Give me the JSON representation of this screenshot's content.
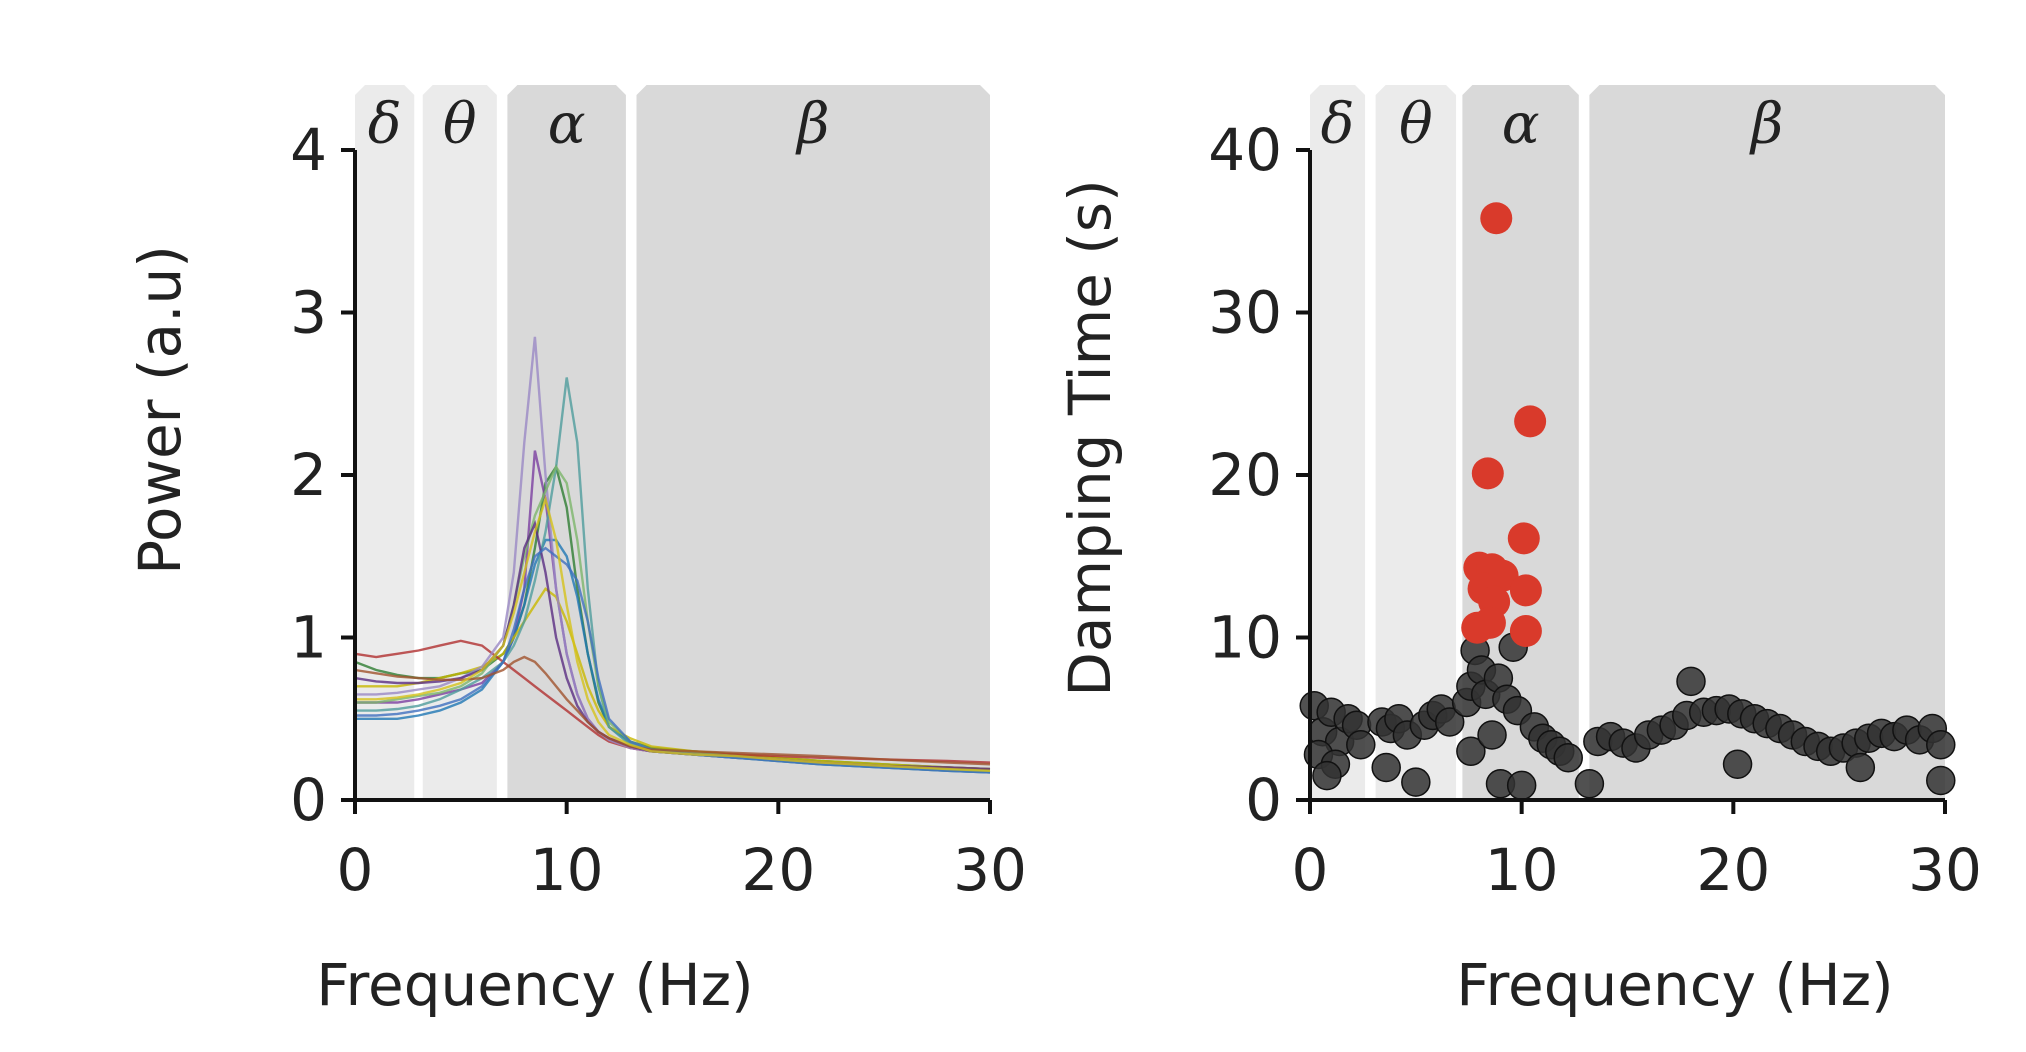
{
  "chart_data": [
    {
      "type": "line",
      "xlabel": "Frequency (Hz)",
      "ylabel": "Power (a.u)",
      "xlim": [
        0,
        30
      ],
      "ylim": [
        0,
        4
      ],
      "xticks": [
        0,
        10,
        20,
        30
      ],
      "yticks": [
        0,
        1,
        2,
        3,
        4
      ],
      "bands": [
        {
          "label": "δ",
          "range": [
            0,
            2.8
          ]
        },
        {
          "label": "θ",
          "range": [
            3.2,
            6.7
          ]
        },
        {
          "label": "α",
          "range": [
            7.2,
            12.8
          ]
        },
        {
          "label": "β",
          "range": [
            13.3,
            30
          ]
        }
      ],
      "series_style": "overlapping spectra of many channels",
      "series_colors": [
        "#2e7d32",
        "#7b3fa0",
        "#1f77b4",
        "#c8b800",
        "#b03030",
        "#9a88c4",
        "#4f9c9c",
        "#7cb56a",
        "#5a2d82",
        "#3f6fbf",
        "#a0522d",
        "#d4c21a"
      ],
      "x": [
        0,
        1,
        2,
        3,
        4,
        5,
        6,
        7,
        7.5,
        8,
        8.5,
        9,
        9.5,
        10,
        10.5,
        11,
        11.5,
        12,
        13,
        14,
        16,
        18,
        20,
        22,
        25,
        28,
        30
      ],
      "series": [
        {
          "values": [
            0.85,
            0.8,
            0.77,
            0.75,
            0.75,
            0.78,
            0.8,
            0.9,
            1.0,
            1.2,
            1.55,
            1.95,
            2.05,
            1.8,
            1.3,
            0.9,
            0.6,
            0.45,
            0.36,
            0.32,
            0.3,
            0.28,
            0.26,
            0.24,
            0.22,
            0.2,
            0.19
          ]
        },
        {
          "values": [
            0.6,
            0.6,
            0.6,
            0.62,
            0.65,
            0.68,
            0.72,
            0.85,
            1.0,
            1.3,
            2.15,
            1.85,
            1.3,
            0.9,
            0.65,
            0.5,
            0.42,
            0.38,
            0.32,
            0.3,
            0.28,
            0.26,
            0.25,
            0.23,
            0.21,
            0.2,
            0.19
          ]
        },
        {
          "values": [
            0.5,
            0.5,
            0.5,
            0.52,
            0.55,
            0.6,
            0.68,
            0.85,
            1.0,
            1.2,
            1.45,
            1.6,
            1.6,
            1.5,
            1.25,
            0.9,
            0.62,
            0.45,
            0.35,
            0.3,
            0.28,
            0.26,
            0.24,
            0.22,
            0.2,
            0.18,
            0.17
          ]
        },
        {
          "values": [
            0.7,
            0.7,
            0.7,
            0.72,
            0.75,
            0.78,
            0.82,
            0.9,
            1.0,
            1.1,
            1.2,
            1.3,
            1.25,
            1.1,
            0.9,
            0.7,
            0.55,
            0.45,
            0.38,
            0.33,
            0.3,
            0.28,
            0.26,
            0.24,
            0.22,
            0.2,
            0.19
          ]
        },
        {
          "values": [
            0.9,
            0.88,
            0.9,
            0.92,
            0.95,
            0.98,
            0.95,
            0.85,
            0.8,
            0.75,
            0.7,
            0.65,
            0.6,
            0.55,
            0.5,
            0.45,
            0.4,
            0.36,
            0.32,
            0.3,
            0.29,
            0.28,
            0.27,
            0.26,
            0.25,
            0.24,
            0.23
          ]
        },
        {
          "values": [
            0.65,
            0.65,
            0.66,
            0.68,
            0.7,
            0.75,
            0.82,
            1.0,
            1.4,
            2.2,
            2.85,
            2.0,
            1.3,
            0.9,
            0.65,
            0.5,
            0.42,
            0.37,
            0.32,
            0.3,
            0.28,
            0.26,
            0.25,
            0.23,
            0.21,
            0.19,
            0.18
          ]
        },
        {
          "values": [
            0.55,
            0.55,
            0.56,
            0.58,
            0.62,
            0.68,
            0.75,
            0.85,
            0.95,
            1.1,
            1.35,
            1.65,
            2.05,
            2.6,
            2.2,
            1.3,
            0.7,
            0.45,
            0.34,
            0.3,
            0.28,
            0.26,
            0.24,
            0.22,
            0.2,
            0.18,
            0.17
          ]
        },
        {
          "values": [
            0.6,
            0.6,
            0.62,
            0.64,
            0.66,
            0.7,
            0.78,
            0.95,
            1.2,
            1.5,
            1.75,
            1.9,
            2.05,
            1.95,
            1.6,
            1.1,
            0.7,
            0.48,
            0.36,
            0.31,
            0.29,
            0.27,
            0.25,
            0.23,
            0.21,
            0.19,
            0.18
          ]
        },
        {
          "values": [
            0.75,
            0.73,
            0.72,
            0.72,
            0.73,
            0.75,
            0.8,
            0.95,
            1.2,
            1.55,
            1.7,
            1.4,
            1.0,
            0.75,
            0.58,
            0.48,
            0.42,
            0.38,
            0.33,
            0.3,
            0.28,
            0.27,
            0.25,
            0.23,
            0.21,
            0.2,
            0.19
          ]
        },
        {
          "values": [
            0.52,
            0.52,
            0.53,
            0.55,
            0.58,
            0.62,
            0.7,
            0.85,
            1.05,
            1.3,
            1.5,
            1.55,
            1.5,
            1.45,
            1.35,
            1.1,
            0.75,
            0.5,
            0.36,
            0.31,
            0.28,
            0.26,
            0.24,
            0.22,
            0.2,
            0.18,
            0.17
          ]
        },
        {
          "values": [
            0.8,
            0.78,
            0.76,
            0.75,
            0.74,
            0.74,
            0.75,
            0.8,
            0.85,
            0.88,
            0.85,
            0.78,
            0.7,
            0.62,
            0.55,
            0.48,
            0.42,
            0.38,
            0.33,
            0.31,
            0.3,
            0.29,
            0.28,
            0.27,
            0.25,
            0.23,
            0.22
          ]
        },
        {
          "values": [
            0.62,
            0.62,
            0.63,
            0.65,
            0.68,
            0.72,
            0.8,
            0.95,
            1.15,
            1.4,
            1.65,
            1.85,
            1.6,
            1.2,
            0.85,
            0.62,
            0.48,
            0.4,
            0.34,
            0.3,
            0.28,
            0.27,
            0.25,
            0.23,
            0.21,
            0.19,
            0.18
          ]
        }
      ]
    },
    {
      "type": "scatter",
      "xlabel": "Frequency (Hz)",
      "ylabel": "Damping Time (s)",
      "xlim": [
        0,
        30
      ],
      "ylim": [
        0,
        40
      ],
      "xticks": [
        0,
        10,
        20,
        30
      ],
      "yticks": [
        0,
        10,
        20,
        30,
        40
      ],
      "bands": [
        {
          "label": "δ",
          "range": [
            0,
            2.6
          ]
        },
        {
          "label": "θ",
          "range": [
            3.1,
            6.9
          ]
        },
        {
          "label": "α",
          "range": [
            7.2,
            12.7
          ]
        },
        {
          "label": "β",
          "range": [
            13.2,
            30
          ]
        }
      ],
      "highlight_color": "#d93a2b",
      "base_color": "#333333",
      "highlighted_points": [
        {
          "x": 8.8,
          "y": 35.8
        },
        {
          "x": 10.4,
          "y": 23.3
        },
        {
          "x": 8.4,
          "y": 20.1
        },
        {
          "x": 10.1,
          "y": 16.1
        },
        {
          "x": 8.0,
          "y": 14.3
        },
        {
          "x": 8.6,
          "y": 14.2
        },
        {
          "x": 9.1,
          "y": 13.8
        },
        {
          "x": 8.2,
          "y": 13.0
        },
        {
          "x": 10.2,
          "y": 12.9
        },
        {
          "x": 8.7,
          "y": 12.2
        },
        {
          "x": 7.9,
          "y": 10.6
        },
        {
          "x": 8.5,
          "y": 10.9
        },
        {
          "x": 10.2,
          "y": 10.4
        }
      ],
      "base_points": [
        {
          "x": 0.2,
          "y": 5.8
        },
        {
          "x": 0.6,
          "y": 4.2
        },
        {
          "x": 1.0,
          "y": 5.4
        },
        {
          "x": 1.4,
          "y": 3.6
        },
        {
          "x": 1.8,
          "y": 5.0
        },
        {
          "x": 2.2,
          "y": 4.6
        },
        {
          "x": 0.4,
          "y": 2.8
        },
        {
          "x": 1.2,
          "y": 2.2
        },
        {
          "x": 0.8,
          "y": 1.5
        },
        {
          "x": 2.4,
          "y": 3.4
        },
        {
          "x": 3.4,
          "y": 4.8
        },
        {
          "x": 3.8,
          "y": 4.4
        },
        {
          "x": 4.2,
          "y": 5.0
        },
        {
          "x": 4.6,
          "y": 4.0
        },
        {
          "x": 5.0,
          "y": 1.1
        },
        {
          "x": 3.6,
          "y": 2.0
        },
        {
          "x": 5.4,
          "y": 4.6
        },
        {
          "x": 5.8,
          "y": 5.2
        },
        {
          "x": 6.2,
          "y": 5.6
        },
        {
          "x": 6.6,
          "y": 4.8
        },
        {
          "x": 7.4,
          "y": 6.0
        },
        {
          "x": 7.6,
          "y": 7.0
        },
        {
          "x": 7.8,
          "y": 9.2
        },
        {
          "x": 8.1,
          "y": 8.0
        },
        {
          "x": 8.3,
          "y": 6.5
        },
        {
          "x": 8.9,
          "y": 7.5
        },
        {
          "x": 9.3,
          "y": 6.2
        },
        {
          "x": 9.6,
          "y": 9.4
        },
        {
          "x": 9.8,
          "y": 5.5
        },
        {
          "x": 10.6,
          "y": 4.5
        },
        {
          "x": 11.0,
          "y": 3.8
        },
        {
          "x": 11.4,
          "y": 3.4
        },
        {
          "x": 11.8,
          "y": 3.0
        },
        {
          "x": 12.2,
          "y": 2.6
        },
        {
          "x": 9.0,
          "y": 1.0
        },
        {
          "x": 10.0,
          "y": 0.9
        },
        {
          "x": 7.6,
          "y": 3.0
        },
        {
          "x": 8.6,
          "y": 4.0
        },
        {
          "x": 13.6,
          "y": 3.6
        },
        {
          "x": 14.2,
          "y": 3.9
        },
        {
          "x": 14.8,
          "y": 3.5
        },
        {
          "x": 15.4,
          "y": 3.2
        },
        {
          "x": 16.0,
          "y": 4.0
        },
        {
          "x": 16.6,
          "y": 4.3
        },
        {
          "x": 17.2,
          "y": 4.6
        },
        {
          "x": 17.8,
          "y": 5.2
        },
        {
          "x": 18.0,
          "y": 7.3
        },
        {
          "x": 18.6,
          "y": 5.4
        },
        {
          "x": 19.2,
          "y": 5.5
        },
        {
          "x": 19.8,
          "y": 5.6
        },
        {
          "x": 20.4,
          "y": 5.3
        },
        {
          "x": 21.0,
          "y": 5.0
        },
        {
          "x": 21.6,
          "y": 4.7
        },
        {
          "x": 22.2,
          "y": 4.4
        },
        {
          "x": 22.8,
          "y": 4.0
        },
        {
          "x": 23.4,
          "y": 3.6
        },
        {
          "x": 24.0,
          "y": 3.3
        },
        {
          "x": 24.6,
          "y": 3.0
        },
        {
          "x": 25.2,
          "y": 3.2
        },
        {
          "x": 25.8,
          "y": 3.5
        },
        {
          "x": 26.4,
          "y": 3.8
        },
        {
          "x": 27.0,
          "y": 4.1
        },
        {
          "x": 27.6,
          "y": 3.9
        },
        {
          "x": 28.2,
          "y": 4.3
        },
        {
          "x": 28.8,
          "y": 3.7
        },
        {
          "x": 29.4,
          "y": 4.4
        },
        {
          "x": 29.8,
          "y": 3.4
        },
        {
          "x": 13.2,
          "y": 1.0
        },
        {
          "x": 20.2,
          "y": 2.2
        },
        {
          "x": 26.0,
          "y": 2.0
        },
        {
          "x": 29.8,
          "y": 1.2
        }
      ]
    }
  ]
}
